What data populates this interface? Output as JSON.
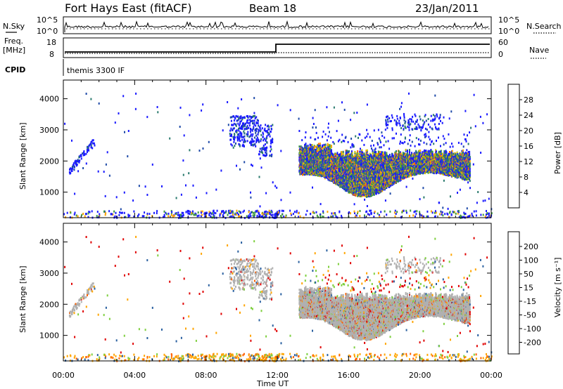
{
  "header": {
    "station": "Fort Hays East (fitACF)",
    "beam": "Beam 18",
    "date": "23/Jan/2011"
  },
  "top_strips": {
    "nsky_label": "N.Sky",
    "nsky_ticks": [
      "10^5",
      "10^0"
    ],
    "nsearch_label": "N.Search",
    "nsearch_ticks": [
      "10^5",
      "10^0"
    ],
    "freq_label_line1": "Freq.",
    "freq_label_line2": "[MHz]",
    "freq_ticks": [
      "18",
      "8"
    ],
    "nave_label": "Nave",
    "nave_ticks": [
      "60",
      "0"
    ],
    "cpid_label": "CPID",
    "cpid_text": "themis 3300 IF"
  },
  "chart_data": [
    {
      "type": "heatmap",
      "name": "power",
      "ylabel": "Slant Range [km]",
      "xlabel": "Time UT",
      "x_ticks": [
        "00:00",
        "04:00",
        "08:00",
        "12:00",
        "16:00",
        "20:00",
        "00:00"
      ],
      "x_range_hours": [
        0,
        24
      ],
      "ylim_km": [
        180,
        4600
      ],
      "y_ticks": [
        1000,
        2000,
        3000,
        4000
      ],
      "colorbar": {
        "label": "Power [dB]",
        "ticks": [
          "4",
          "8",
          "12",
          "16",
          "20",
          "24",
          "28"
        ],
        "range": [
          0,
          30
        ]
      },
      "regions": [
        {
          "t0": 13.2,
          "t1": 22.8,
          "r_lo": 1250,
          "r_hi": 2500,
          "core": "orange-green",
          "note": "main ionospheric echo band"
        },
        {
          "t0": 9.3,
          "t1": 11.7,
          "r_lo": 2600,
          "r_hi": 3500,
          "core": "blue"
        },
        {
          "t0": 18.0,
          "t1": 21.2,
          "r_lo": 2900,
          "r_hi": 3600,
          "core": "blue"
        },
        {
          "t0": 0.3,
          "t1": 1.6,
          "r_lo": 1500,
          "r_hi": 2500,
          "core": "blue"
        },
        {
          "t0": 0.0,
          "t1": 24.0,
          "r_lo": 180,
          "r_hi": 350,
          "core": "ground-scatter"
        }
      ]
    },
    {
      "type": "heatmap",
      "name": "velocity",
      "ylabel": "Slant Range [km]",
      "xlabel": "Time UT",
      "x_ticks": [
        "00:00",
        "04:00",
        "08:00",
        "12:00",
        "16:00",
        "20:00",
        "00:00"
      ],
      "x_range_hours": [
        0,
        24
      ],
      "ylim_km": [
        180,
        4600
      ],
      "y_ticks": [
        1000,
        2000,
        3000,
        4000
      ],
      "colorbar": {
        "label": "Velocity [m s⁻¹]",
        "ticks": [
          "200",
          "100",
          "50",
          "15",
          "-15",
          "-50",
          "-100",
          "-200"
        ],
        "range": [
          -250,
          250
        ]
      }
    }
  ],
  "colors": {
    "power_scale": [
      "#1a1aff",
      "#1f4aa8",
      "#2a7a6e",
      "#3f9a3f",
      "#c8c800",
      "#ffa500",
      "#ff6000",
      "#e00000"
    ],
    "velocity_scale": [
      "#e00000",
      "#ff6000",
      "#ffa500",
      "#c8c8b4",
      "#c8c8c8",
      "#7fd040",
      "#3f9a3f",
      "#2a60a0",
      "#1a1aff"
    ],
    "ground_scatter": "#b0b0b0"
  }
}
